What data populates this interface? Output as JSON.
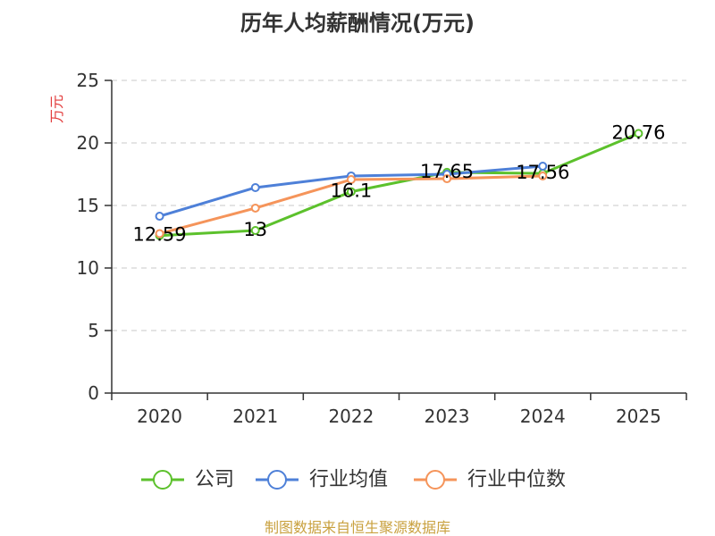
{
  "chart_data": {
    "type": "line",
    "title": "历年人均薪酬情况(万元)",
    "xlabel": "",
    "ylabel": "万元",
    "categories": [
      "2020",
      "2021",
      "2022",
      "2023",
      "2024",
      "2025"
    ],
    "series": [
      {
        "name": "公司",
        "color": "#5cc12c",
        "values": [
          12.59,
          13,
          16.1,
          17.65,
          17.56,
          20.76
        ],
        "show_labels": true
      },
      {
        "name": "行业均值",
        "color": "#4e80d8",
        "values": [
          14.14,
          16.43,
          17.36,
          17.5,
          18.14,
          null
        ],
        "show_labels": false
      },
      {
        "name": "行业中位数",
        "color": "#f5945a",
        "values": [
          12.75,
          14.79,
          17.07,
          17.14,
          17.36,
          null
        ],
        "show_labels": false
      }
    ],
    "ylim": [
      0,
      25
    ],
    "yticks": [
      0,
      5,
      10,
      15,
      20,
      25
    ],
    "grid": true,
    "legend": "bottom"
  },
  "colors": {
    "ylabel": "#e23b3b",
    "footer": "#c9a13f",
    "grid": "#c8c8c8",
    "axis": "#333333"
  },
  "footer": {
    "source": "制图数据来自恒生聚源数据库"
  }
}
